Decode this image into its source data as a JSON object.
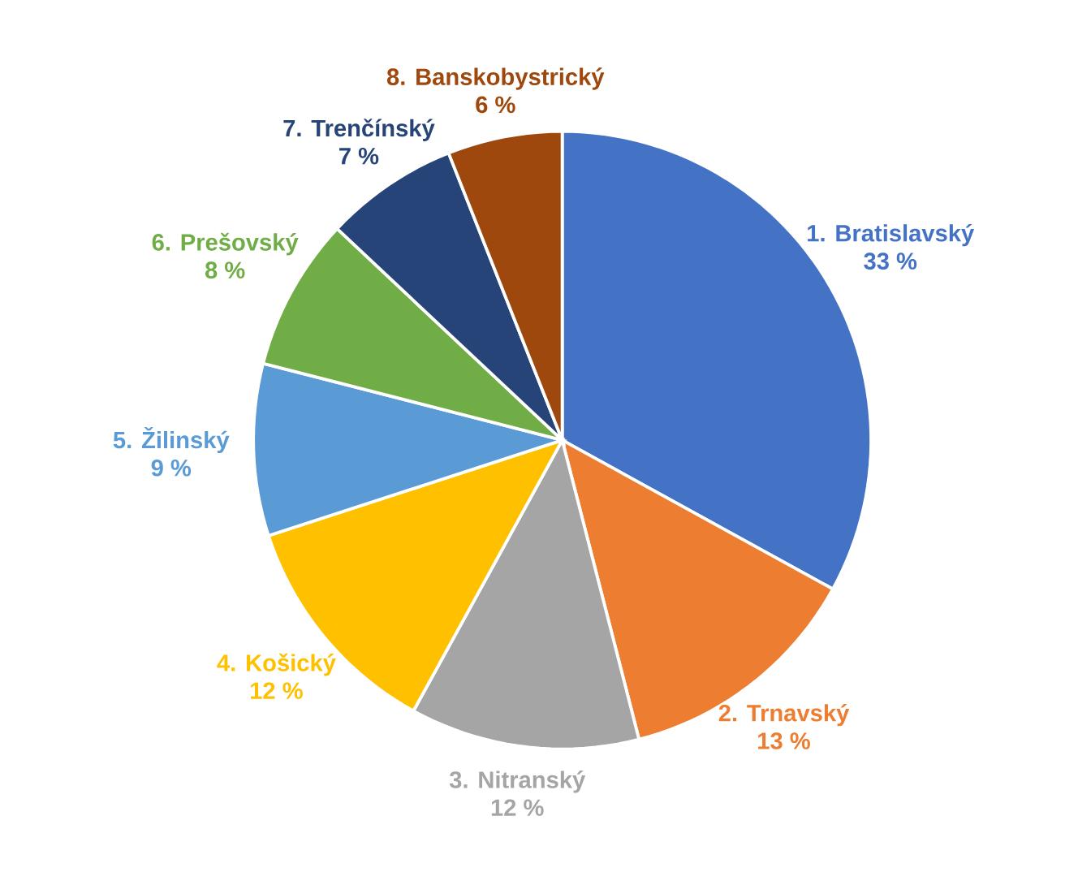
{
  "chart_data": {
    "type": "pie",
    "categories": [
      "1. Bratislavský",
      "2. Trnavský",
      "3. Nitranský",
      "4. Košický",
      "5. Žilinský",
      "6. Prešovský",
      "7. Trenčínský",
      "8. Banskobystrický"
    ],
    "values": [
      33,
      13,
      12,
      12,
      9,
      8,
      7,
      6
    ],
    "colors": [
      "#4472c4",
      "#ed7d31",
      "#a5a5a5",
      "#ffc000",
      "#5b9bd5",
      "#70ad47",
      "#264478",
      "#9e480e"
    ],
    "value_labels": [
      "33 %",
      "13 %",
      "12 %",
      "12 %",
      "9 %",
      "8 %",
      "7 %",
      "6 %"
    ]
  }
}
